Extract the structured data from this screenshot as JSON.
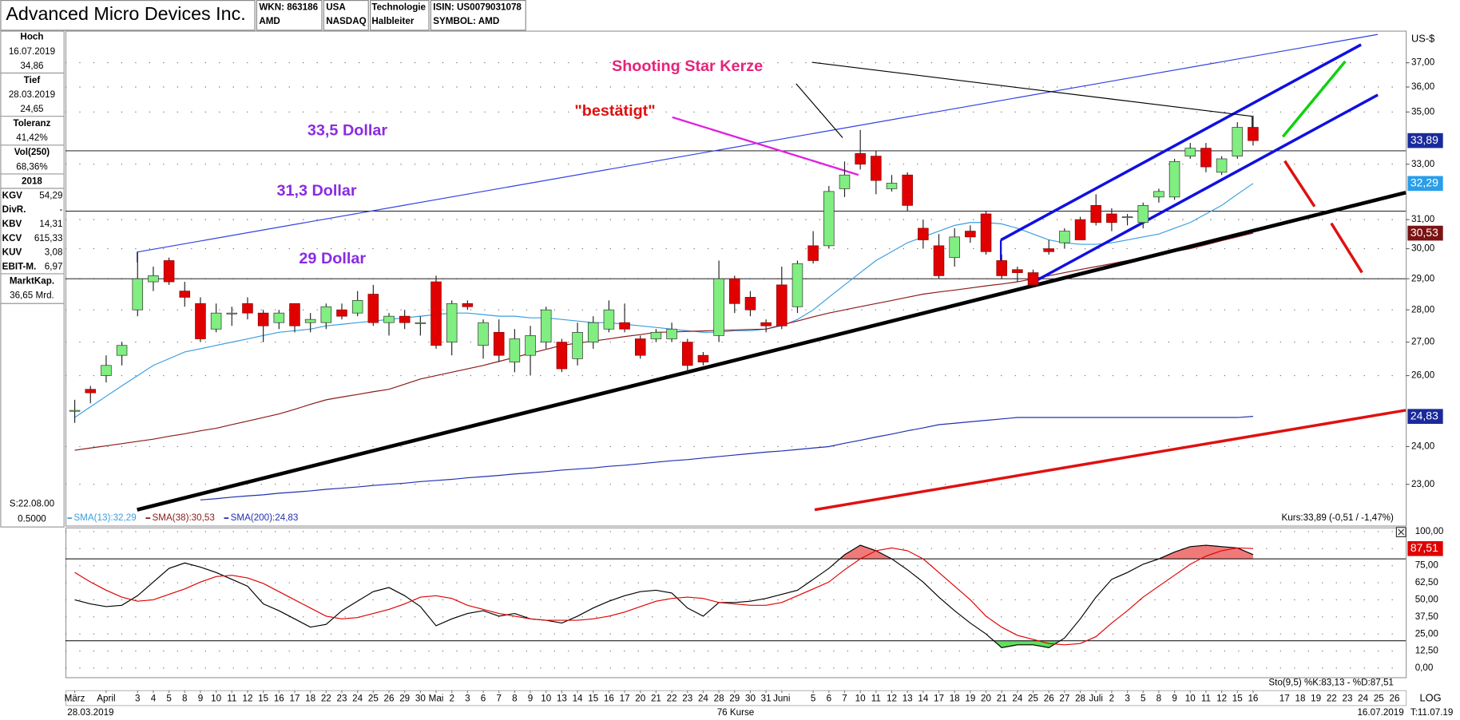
{
  "header": {
    "title": "Advanced Micro Devices Inc.",
    "wkn": "WKN: 863186",
    "ticker": "AMD",
    "country": "USA",
    "exchange": "NASDAQ",
    "sector": "Technologie",
    "industry": "Halbleiter",
    "isin": "ISIN: US0079031078",
    "symbol": "SYMBOL: AMD"
  },
  "sidebar": {
    "blocks": [
      {
        "label": "Hoch",
        "lines": [
          "16.07.2019",
          "34,86"
        ]
      },
      {
        "label": "Tief",
        "lines": [
          "28.03.2019",
          "24,65"
        ]
      },
      {
        "label": "Toleranz",
        "lines": [
          "41,42%"
        ]
      },
      {
        "label": "Vol(250)",
        "lines": [
          "68,36%"
        ]
      },
      {
        "label": "2018",
        "lines": []
      }
    ],
    "ratios": [
      {
        "label": "KGV",
        "value": "54,29"
      },
      {
        "label": "DivR.",
        "value": "-"
      },
      {
        "label": "KBV",
        "value": "14,31"
      },
      {
        "label": "KCV",
        "value": "615,33"
      },
      {
        "label": "KUV",
        "value": "3,08"
      },
      {
        "label": "EBIT-M.",
        "value": "6,97"
      }
    ],
    "market_cap": {
      "label": "MarktKap.",
      "value": "36,65 Mrd."
    },
    "footer": [
      "S:22.08.00",
      "0.5000"
    ]
  },
  "footer": {
    "start": "28.03.2019",
    "count": "76 Kurse",
    "end": "16.07.2019",
    "scale": "LOG",
    "time": "T:11.07.19"
  },
  "chart_data": [
    {
      "type": "candlestick",
      "y_label": "US-$",
      "log": true,
      "grid": true,
      "up_color": "#80ee80",
      "down_color": "#e00000",
      "ylim": [
        22.0,
        38.2
      ],
      "yticks": [
        {
          "value": 37,
          "label": "37,00"
        },
        {
          "value": 36,
          "label": "36,00"
        },
        {
          "value": 35,
          "label": "35,00"
        },
        {
          "value": 33,
          "label": "33,00"
        },
        {
          "value": 31,
          "label": "31,00"
        },
        {
          "value": 30,
          "label": "30,00"
        },
        {
          "value": 29,
          "label": "29,00"
        },
        {
          "value": 28,
          "label": "28,00"
        },
        {
          "value": 27,
          "label": "27,00"
        },
        {
          "value": 26,
          "label": "26,00"
        },
        {
          "value": 24,
          "label": "24,00"
        },
        {
          "value": 23,
          "label": "23,00"
        }
      ],
      "categories": [
        "März",
        null,
        "April",
        null,
        "3",
        "4",
        "5",
        "8",
        "9",
        "10",
        "11",
        "12",
        "15",
        "16",
        "17",
        "18",
        "22",
        "23",
        "24",
        "25",
        "26",
        "29",
        "30",
        "Mai",
        "2",
        "3",
        "6",
        "7",
        "8",
        "9",
        "10",
        "13",
        "14",
        "15",
        "16",
        "17",
        "20",
        "21",
        "22",
        "23",
        "24",
        "28",
        "29",
        "30",
        "31",
        "Juni",
        null,
        "5",
        "6",
        "7",
        "10",
        "11",
        "12",
        "13",
        "14",
        "17",
        "18",
        "19",
        "20",
        "21",
        "24",
        "25",
        "26",
        "27",
        "28",
        "Juli",
        "2",
        "3",
        "5",
        "8",
        "9",
        "10",
        "11",
        "12",
        "15",
        "16"
      ],
      "future_categories": [
        "17",
        "18",
        "19",
        "22",
        "23",
        "24",
        "25",
        "26"
      ],
      "open": [
        25.0,
        25.6,
        26.0,
        26.6,
        28.0,
        28.9,
        29.6,
        28.6,
        28.2,
        27.4,
        27.9,
        28.2,
        27.9,
        27.6,
        28.2,
        27.6,
        27.6,
        28.0,
        27.9,
        28.5,
        27.6,
        27.8,
        27.6,
        28.9,
        27.0,
        28.2,
        26.9,
        27.3,
        26.4,
        26.6,
        27.0,
        27.0,
        26.5,
        27.0,
        27.4,
        27.6,
        27.1,
        27.1,
        27.1,
        27.0,
        26.6,
        27.2,
        29.0,
        28.4,
        27.6,
        28.8,
        28.1,
        30.1,
        30.1,
        32.1,
        33.4,
        33.3,
        32.1,
        32.6,
        30.7,
        30.1,
        29.7,
        30.6,
        31.2,
        29.6,
        29.3,
        29.2,
        30.0,
        30.2,
        31.0,
        31.5,
        31.2,
        31.1,
        30.9,
        31.8,
        31.8,
        33.3,
        33.6,
        32.7,
        33.3,
        34.4
      ],
      "high": [
        25.3,
        25.7,
        26.6,
        27.0,
        29.9,
        29.4,
        29.7,
        28.9,
        28.4,
        28.2,
        28.1,
        28.4,
        28.0,
        28.0,
        28.2,
        27.9,
        28.2,
        28.2,
        28.6,
        28.8,
        27.9,
        28.0,
        27.8,
        29.1,
        28.3,
        28.3,
        27.7,
        27.7,
        27.4,
        27.5,
        28.1,
        27.1,
        27.6,
        27.8,
        28.3,
        28.2,
        27.2,
        27.4,
        27.6,
        27.1,
        26.7,
        29.6,
        29.1,
        28.6,
        27.7,
        29.4,
        29.6,
        30.6,
        32.2,
        33.1,
        34.3,
        33.5,
        32.6,
        32.7,
        31.0,
        30.5,
        30.7,
        30.8,
        31.3,
        29.8,
        29.4,
        29.3,
        30.3,
        30.7,
        31.1,
        31.9,
        31.4,
        31.2,
        31.6,
        32.1,
        33.2,
        33.8,
        33.8,
        33.3,
        34.6,
        34.86
      ],
      "low": [
        24.65,
        25.2,
        25.8,
        26.3,
        27.8,
        28.6,
        28.8,
        28.1,
        27.0,
        27.3,
        27.5,
        27.7,
        27.0,
        27.4,
        27.3,
        27.3,
        27.4,
        27.7,
        27.8,
        27.5,
        27.2,
        27.4,
        27.2,
        26.8,
        26.6,
        28.0,
        26.5,
        26.4,
        26.1,
        26.0,
        26.8,
        26.1,
        26.3,
        26.8,
        27.3,
        27.3,
        26.5,
        27.0,
        27.0,
        26.1,
        26.3,
        27.0,
        27.9,
        27.8,
        27.3,
        27.4,
        27.9,
        29.5,
        30.0,
        31.8,
        32.8,
        31.9,
        32.0,
        31.3,
        30.0,
        29.0,
        29.4,
        30.2,
        29.8,
        29.0,
        28.9,
        28.8,
        29.8,
        30.0,
        30.3,
        30.8,
        30.6,
        30.8,
        30.7,
        31.6,
        31.7,
        33.2,
        32.7,
        32.6,
        33.2,
        33.7
      ],
      "close": [
        25.0,
        25.5,
        26.3,
        26.9,
        29.0,
        29.1,
        28.9,
        28.4,
        27.1,
        27.9,
        27.9,
        27.9,
        27.5,
        27.9,
        27.5,
        27.7,
        28.1,
        27.8,
        28.3,
        27.6,
        27.8,
        27.6,
        27.6,
        26.9,
        28.2,
        28.1,
        27.6,
        26.6,
        27.1,
        27.2,
        28.0,
        26.2,
        27.3,
        27.6,
        28.0,
        27.4,
        26.6,
        27.3,
        27.4,
        26.3,
        26.4,
        29.0,
        28.2,
        28.0,
        27.5,
        27.5,
        29.5,
        29.6,
        32.0,
        32.6,
        33.0,
        32.4,
        32.3,
        31.5,
        30.3,
        29.1,
        30.4,
        30.4,
        29.9,
        29.1,
        29.2,
        28.8,
        29.9,
        30.6,
        30.3,
        30.9,
        30.9,
        31.1,
        31.5,
        32.0,
        33.1,
        33.6,
        32.9,
        33.2,
        34.4,
        33.89
      ],
      "series": [
        {
          "name": "SMA(13):32,29",
          "color": "#3a9ee0",
          "values": [
            24.8,
            25.1,
            25.4,
            25.7,
            26.0,
            26.3,
            26.5,
            26.7,
            26.8,
            26.9,
            27.0,
            27.1,
            27.2,
            27.3,
            27.35,
            27.4,
            27.5,
            27.55,
            27.6,
            27.65,
            27.7,
            27.75,
            27.8,
            27.85,
            27.9,
            27.9,
            27.85,
            27.8,
            27.8,
            27.75,
            27.75,
            27.7,
            27.65,
            27.6,
            27.6,
            27.55,
            27.5,
            27.45,
            27.4,
            27.35,
            27.3,
            27.3,
            27.35,
            27.35,
            27.4,
            27.5,
            27.7,
            28.0,
            28.4,
            28.8,
            29.2,
            29.6,
            29.9,
            30.2,
            30.4,
            30.6,
            30.8,
            30.9,
            30.9,
            30.85,
            30.7,
            30.5,
            30.3,
            30.2,
            30.15,
            30.15,
            30.2,
            30.3,
            30.4,
            30.5,
            30.7,
            30.9,
            31.2,
            31.5,
            31.9,
            32.29
          ]
        },
        {
          "name": "SMA(38):30,53",
          "color": "#8b1a1a",
          "values": [
            23.9,
            23.96,
            24.02,
            24.08,
            24.14,
            24.2,
            24.28,
            24.35,
            24.43,
            24.5,
            24.6,
            24.7,
            24.8,
            24.9,
            25.03,
            25.17,
            25.3,
            25.38,
            25.45,
            25.53,
            25.6,
            25.75,
            25.9,
            26.0,
            26.1,
            26.2,
            26.3,
            26.42,
            26.54,
            26.66,
            26.78,
            26.9,
            26.97,
            27.03,
            27.1,
            27.17,
            27.23,
            27.3,
            27.31,
            27.33,
            27.34,
            27.36,
            27.37,
            27.39,
            27.4,
            27.53,
            27.65,
            27.78,
            27.9,
            28.0,
            28.1,
            28.2,
            28.3,
            28.4,
            28.5,
            28.57,
            28.63,
            28.7,
            28.77,
            28.83,
            28.9,
            29.0,
            29.1,
            29.2,
            29.3,
            29.4,
            29.5,
            29.6,
            29.7,
            29.8,
            29.9,
            30.0,
            30.13,
            30.27,
            30.4,
            30.53
          ]
        },
        {
          "name": "SMA(200):24,83",
          "color": "#2030b0",
          "values": [
            null,
            null,
            null,
            null,
            null,
            null,
            null,
            null,
            22.6,
            22.63,
            22.67,
            22.7,
            22.73,
            22.77,
            22.8,
            22.83,
            22.87,
            22.9,
            22.93,
            22.97,
            23.0,
            23.03,
            23.07,
            23.1,
            23.13,
            23.17,
            23.2,
            23.23,
            23.27,
            23.3,
            23.33,
            23.37,
            23.4,
            23.43,
            23.47,
            23.5,
            23.54,
            23.58,
            23.62,
            23.65,
            23.69,
            23.73,
            23.77,
            23.81,
            23.85,
            23.88,
            23.92,
            23.96,
            24.0,
            24.09,
            24.17,
            24.26,
            24.34,
            24.43,
            24.51,
            24.6,
            24.64,
            24.68,
            24.72,
            24.76,
            24.8,
            24.8,
            24.8,
            24.8,
            24.8,
            24.8,
            24.8,
            24.8,
            24.8,
            24.8,
            24.8,
            24.8,
            24.8,
            24.8,
            24.8,
            24.83
          ]
        }
      ],
      "levels": [
        {
          "value": 33.5,
          "label": "33,5 Dollar"
        },
        {
          "value": 31.3,
          "label": "31,3 Dollar"
        },
        {
          "value": 29,
          "label": "29 Dollar"
        }
      ],
      "markers": [
        {
          "value": 33.89,
          "label": "33,89",
          "color": "#1a2a9c"
        },
        {
          "value": 32.29,
          "label": "32,29",
          "color": "#2a9ee8"
        },
        {
          "value": 30.53,
          "label": "30,53",
          "color": "#7a1414"
        },
        {
          "value": 24.83,
          "label": "24,83",
          "color": "#1a2a9c"
        }
      ],
      "annotations": [
        "Shooting Star Kerze",
        "\"bestätigt\""
      ],
      "quote": "Kurs:33,89 (-0,51 / -1,47%)"
    },
    {
      "type": "line",
      "grid": true,
      "ylim": [
        -6,
        103
      ],
      "yticks": [
        {
          "value": 100,
          "label": "100,00"
        },
        {
          "value": 87.5,
          "label": "87,50"
        },
        {
          "value": 75,
          "label": "75,00"
        },
        {
          "value": 62.5,
          "label": "62,50"
        },
        {
          "value": 50,
          "label": "50,00"
        },
        {
          "value": 37.5,
          "label": "37,50"
        },
        {
          "value": 25,
          "label": "25,00"
        },
        {
          "value": 12.5,
          "label": "12,50"
        },
        {
          "value": 0,
          "label": "0,00"
        }
      ],
      "bands": [
        20,
        80
      ],
      "band_colors": [
        "#5ee05e",
        "#f07a7a"
      ],
      "series": [
        {
          "color": "#000000",
          "values": [
            50,
            47,
            45,
            46,
            53,
            63,
            73,
            77,
            74,
            70,
            65,
            60,
            47,
            42,
            36,
            30,
            32,
            42,
            49,
            56,
            59,
            53,
            45,
            31,
            36,
            40,
            42,
            38,
            40,
            36,
            35,
            33,
            38,
            44,
            49,
            53,
            56,
            57,
            55,
            44,
            38,
            48,
            48,
            49,
            51,
            54,
            57,
            65,
            73,
            83,
            90,
            86,
            80,
            72,
            63,
            52,
            42,
            33,
            25,
            15,
            17,
            17,
            15,
            22,
            36,
            52,
            65,
            70,
            76,
            80,
            85,
            89,
            90,
            89,
            88,
            83.13
          ]
        },
        {
          "color": "#e00000",
          "values": [
            70,
            63,
            57,
            52,
            49,
            50,
            54,
            58,
            63,
            67,
            68,
            66,
            62,
            56,
            50,
            44,
            38,
            36,
            37,
            40,
            43,
            47,
            52,
            53,
            51,
            46,
            43,
            40,
            38,
            36,
            35,
            35,
            35,
            36,
            38,
            41,
            45,
            49,
            51,
            52,
            51,
            48,
            47,
            46,
            46,
            48,
            53,
            58,
            63,
            72,
            80,
            86,
            88,
            86,
            80,
            70,
            60,
            50,
            38,
            30,
            24,
            21,
            18,
            17,
            18,
            23,
            33,
            42,
            52,
            60,
            68,
            76,
            82,
            86,
            88,
            87.51
          ]
        }
      ],
      "markers": [
        {
          "value": 87.51,
          "label": "87,51",
          "color": "#e00000"
        }
      ],
      "legend": "Sto(9,5) %K:83,13 - %D:87,51"
    }
  ]
}
